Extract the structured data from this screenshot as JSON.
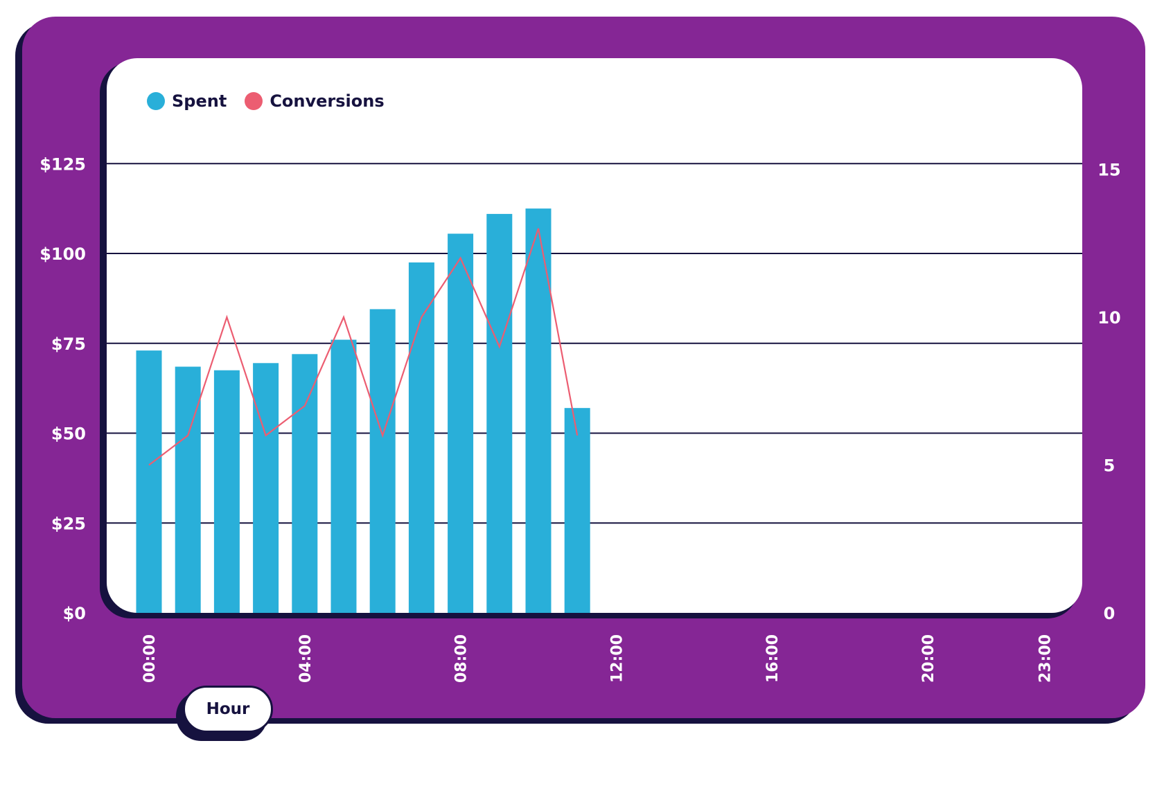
{
  "colors": {
    "frame": "#852695",
    "dark": "#16123f",
    "plot_bg": "#ffffff",
    "spent": "#29afd9",
    "conversions": "#ec5d71",
    "axis_text": "#ffffff"
  },
  "axis_title": "Hour",
  "chart_data": {
    "type": "bar",
    "x_labels": [
      "00:00",
      "04:00",
      "08:00",
      "12:00",
      "16:00",
      "20:00",
      "23:00"
    ],
    "x_label_hours": [
      0,
      4,
      8,
      12,
      16,
      20,
      23
    ],
    "y_left_ticks": [
      "$0",
      "$25",
      "$50",
      "$75",
      "$100",
      "$125"
    ],
    "y_left_range": [
      0,
      125
    ],
    "y_right_ticks": [
      "0",
      "5",
      "10",
      "15"
    ],
    "y_right_range": [
      0,
      15
    ],
    "grid": true,
    "legend": "top-left",
    "series": [
      {
        "name": "Spent",
        "type": "bar",
        "axis": "left",
        "color": "#29afd9",
        "hours": [
          0,
          1,
          2,
          3,
          4,
          5,
          6,
          7,
          8,
          9,
          10,
          11
        ],
        "values": [
          73,
          68.5,
          67.5,
          69.5,
          72,
          76,
          84.5,
          97.5,
          105.5,
          111,
          112.5,
          57
        ]
      },
      {
        "name": "Conversions",
        "type": "line",
        "axis": "right",
        "color": "#ec5d71",
        "hours": [
          0,
          1,
          2,
          3,
          4,
          5,
          6,
          7,
          8,
          9,
          10,
          11
        ],
        "values": [
          5,
          6,
          10,
          6,
          7,
          10,
          6,
          10,
          12,
          9,
          13,
          6
        ]
      }
    ]
  }
}
